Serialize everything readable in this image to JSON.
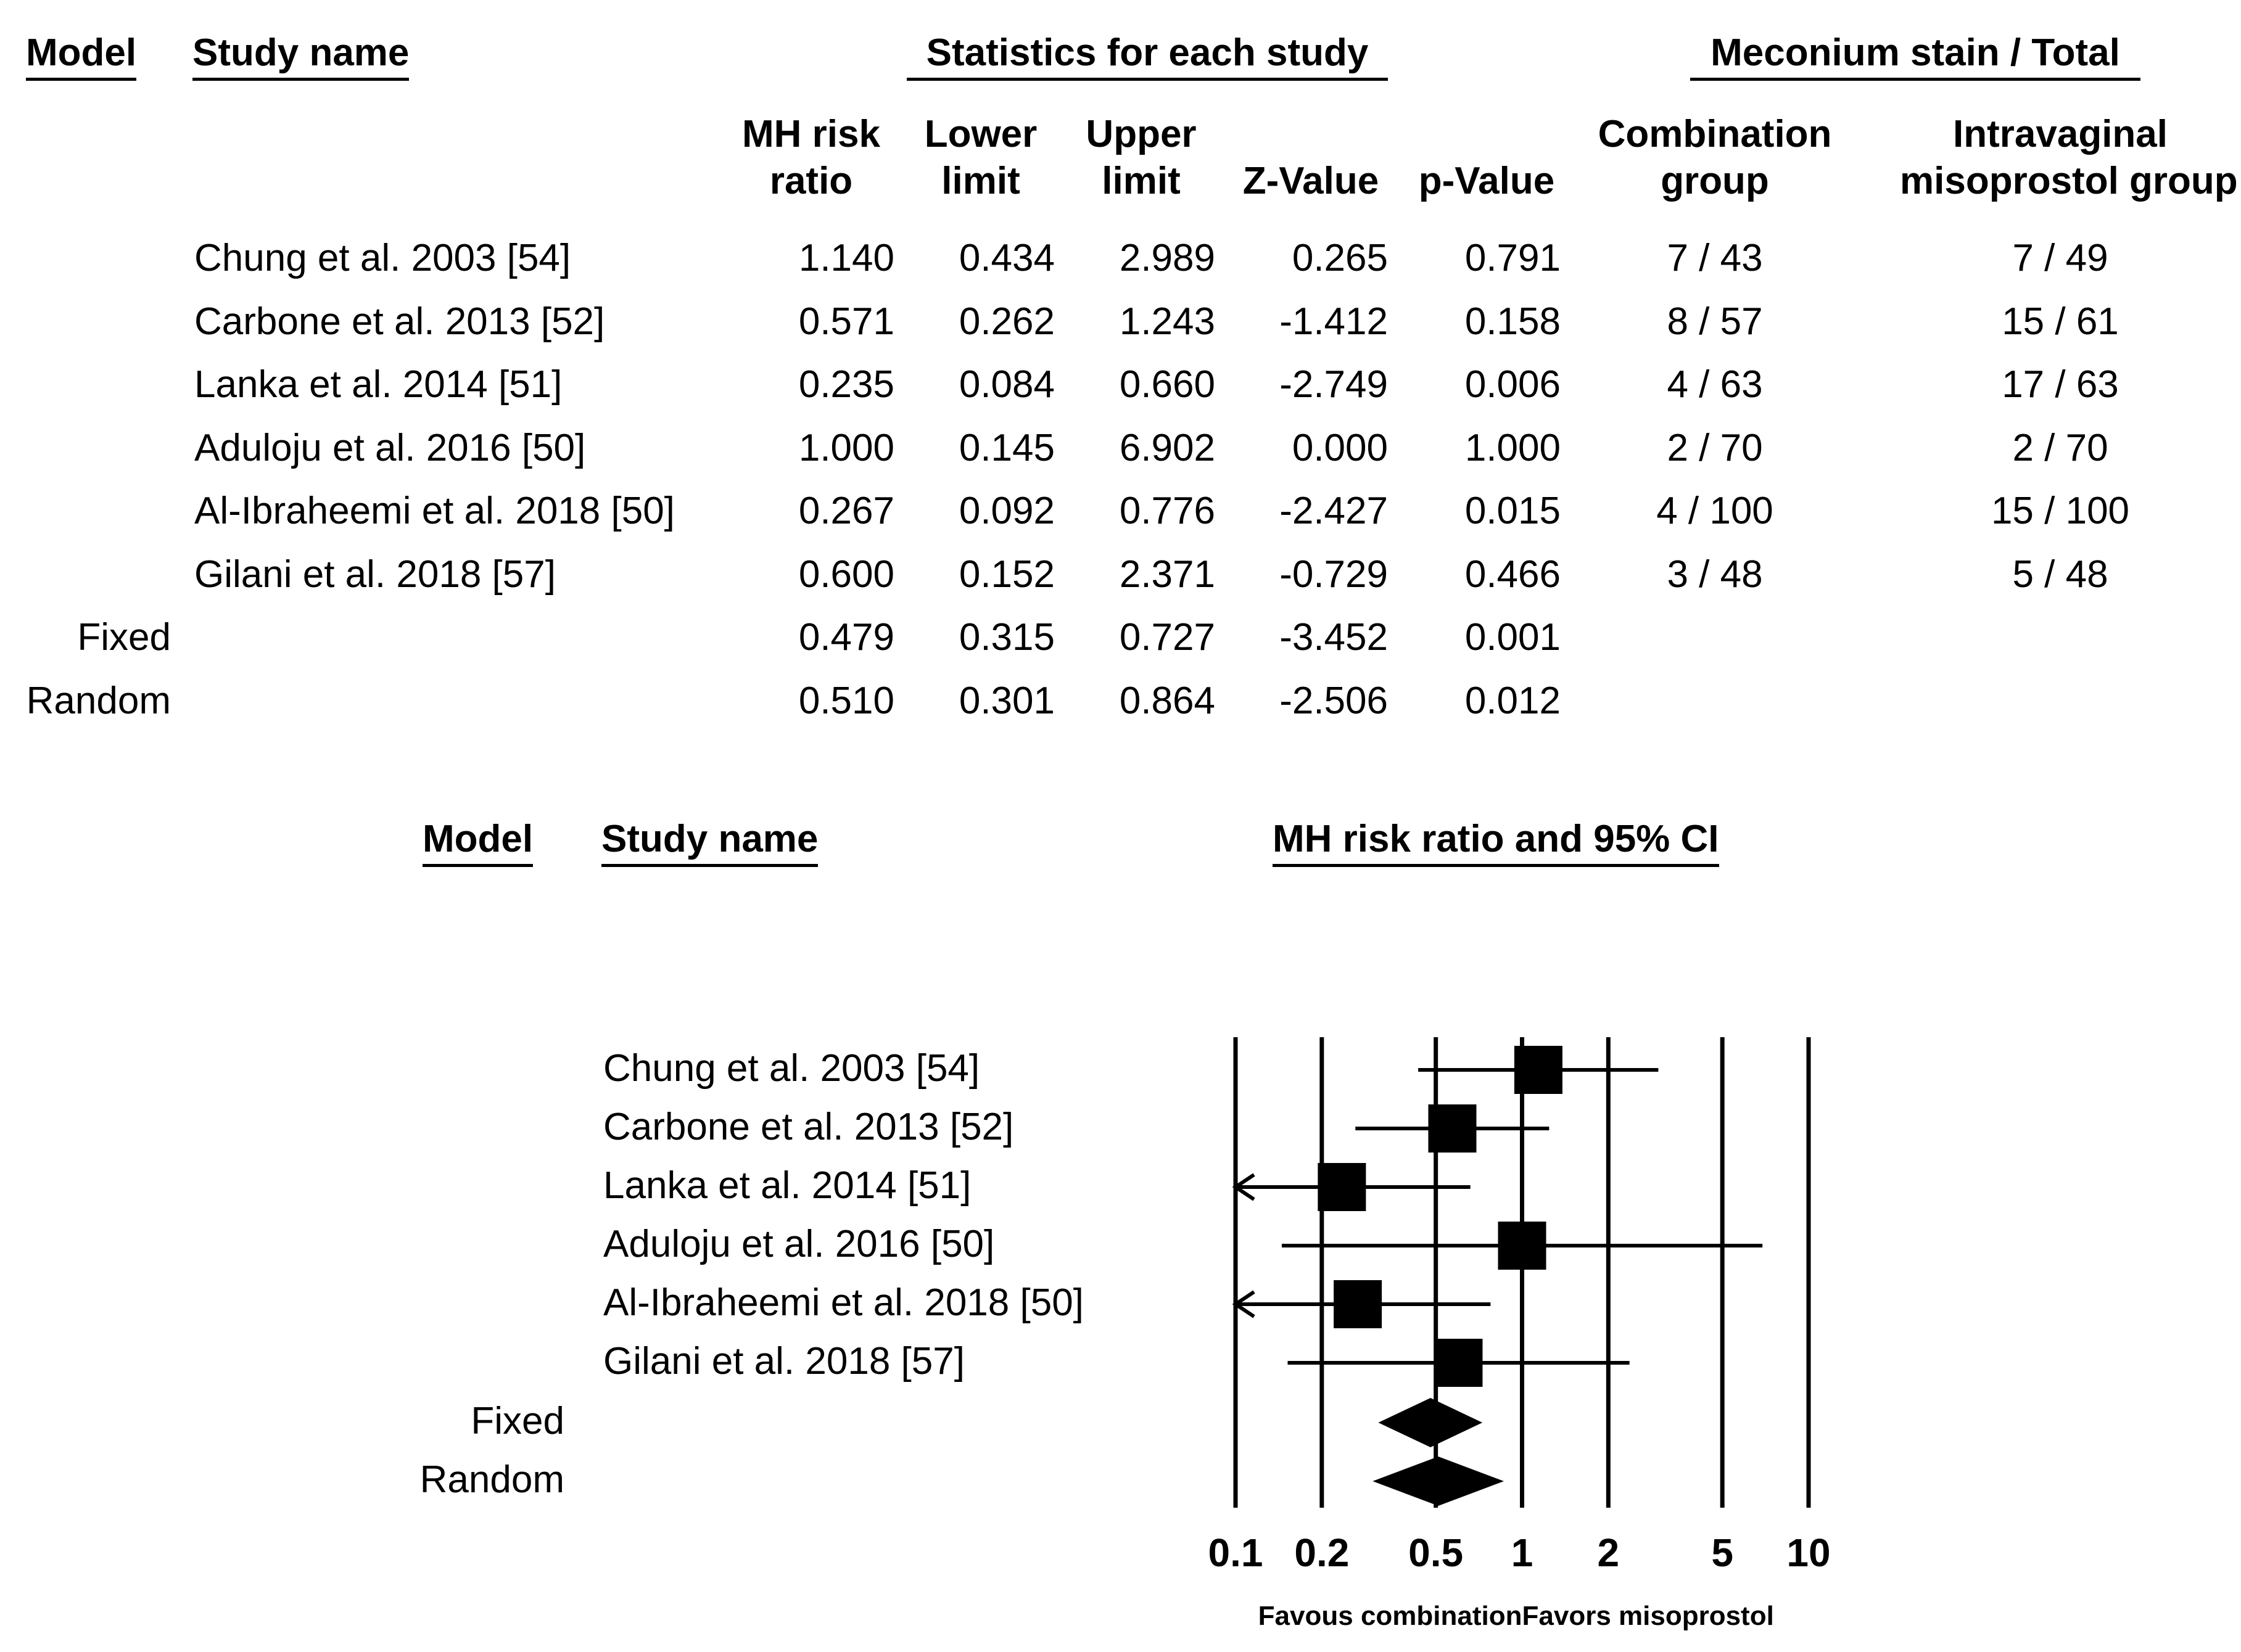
{
  "top_table": {
    "headers": {
      "model": "Model",
      "study_name": "Study name",
      "stats_group": "Statistics for each study",
      "counts_group": "Meconium stain / Total"
    },
    "columns": {
      "rr": [
        "MH risk",
        "ratio"
      ],
      "lower": [
        "Lower",
        "limit"
      ],
      "upper": [
        "Upper",
        "limit"
      ],
      "z": "Z-Value",
      "p": "p-Value",
      "combo": [
        "Combination",
        "group"
      ],
      "intra": [
        "Intravaginal",
        "misoprostol group"
      ]
    },
    "rows": [
      {
        "name": "Chung et al. 2003 [54]",
        "rr": "1.140",
        "lower": "0.434",
        "upper": "2.989",
        "z": "0.265",
        "p": "0.791",
        "combo": "7 / 43",
        "intra": "7 / 49"
      },
      {
        "name": "Carbone et al. 2013 [52]",
        "rr": "0.571",
        "lower": "0.262",
        "upper": "1.243",
        "z": "-1.412",
        "p": "0.158",
        "combo": "8 / 57",
        "intra": "15 / 61"
      },
      {
        "name": "Lanka et al. 2014 [51]",
        "rr": "0.235",
        "lower": "0.084",
        "upper": "0.660",
        "z": "-2.749",
        "p": "0.006",
        "combo": "4 / 63",
        "intra": "17 / 63"
      },
      {
        "name": "Aduloju et al. 2016 [50]",
        "rr": "1.000",
        "lower": "0.145",
        "upper": "6.902",
        "z": "0.000",
        "p": "1.000",
        "combo": "2 / 70",
        "intra": "2 / 70"
      },
      {
        "name": "Al-Ibraheemi et al. 2018 [50]",
        "rr": "0.267",
        "lower": "0.092",
        "upper": "0.776",
        "z": "-2.427",
        "p": "0.015",
        "combo": "4 / 100",
        "intra": "15 / 100"
      },
      {
        "name": "Gilani et al. 2018 [57]",
        "rr": "0.600",
        "lower": "0.152",
        "upper": "2.371",
        "z": "-0.729",
        "p": "0.466",
        "combo": "3 / 48",
        "intra": "5 / 48"
      }
    ],
    "summary": [
      {
        "model": "Fixed",
        "rr": "0.479",
        "lower": "0.315",
        "upper": "0.727",
        "z": "-3.452",
        "p": "0.001"
      },
      {
        "model": "Random",
        "rr": "0.510",
        "lower": "0.301",
        "upper": "0.864",
        "z": "-2.506",
        "p": "0.012"
      }
    ]
  },
  "forest": {
    "headers": {
      "model": "Model",
      "study_name": "Study name",
      "plot_title": "MH risk ratio and 95% CI"
    },
    "favors_left": "Favous combination",
    "favors_right": "Favors misoprostol"
  },
  "chart_data": {
    "type": "forest",
    "title": "MH risk ratio and 95% CI",
    "scale": "log",
    "xlim": [
      0.1,
      10
    ],
    "ticks": [
      0.1,
      0.2,
      0.5,
      1,
      2,
      5,
      10
    ],
    "tick_labels": [
      "0.1",
      "0.2",
      "0.5",
      "1",
      "2",
      "5",
      "10"
    ],
    "xlabel_left": "Favous combination",
    "xlabel_right": "Favors misoprostol",
    "studies": [
      {
        "name": "Chung et al. 2003 [54]",
        "rr": 1.14,
        "lower": 0.434,
        "upper": 2.989
      },
      {
        "name": "Carbone et al. 2013 [52]",
        "rr": 0.571,
        "lower": 0.262,
        "upper": 1.243
      },
      {
        "name": "Lanka et al. 2014 [51]",
        "rr": 0.235,
        "lower": 0.084,
        "upper": 0.66
      },
      {
        "name": "Aduloju et al. 2016 [50]",
        "rr": 1.0,
        "lower": 0.145,
        "upper": 6.902
      },
      {
        "name": "Al-Ibraheemi et al. 2018 [50]",
        "rr": 0.267,
        "lower": 0.092,
        "upper": 0.776
      },
      {
        "name": "Gilani et al. 2018 [57]",
        "rr": 0.6,
        "lower": 0.152,
        "upper": 2.371
      }
    ],
    "pooled": [
      {
        "model": "Fixed",
        "rr": 0.479,
        "lower": 0.315,
        "upper": 0.727
      },
      {
        "model": "Random",
        "rr": 0.51,
        "lower": 0.301,
        "upper": 0.864
      }
    ]
  }
}
